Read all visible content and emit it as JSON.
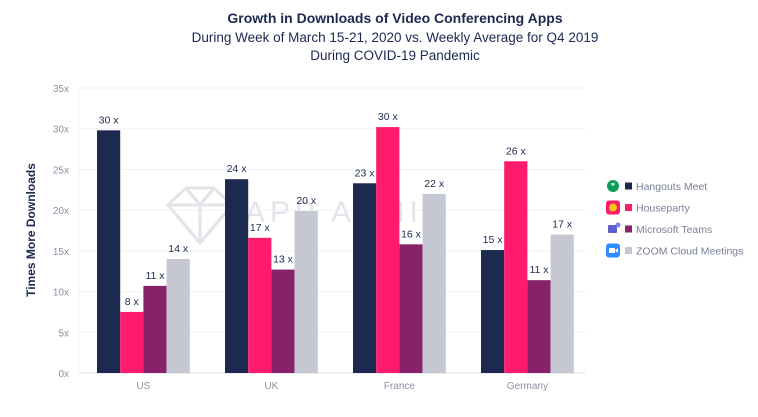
{
  "chart_data": {
    "type": "bar",
    "title": "Growth in Downloads of Video Conferencing Apps",
    "subtitle": [
      "During Week of March 15-21, 2020 vs. Weekly Average for Q4 2019",
      "During COVID-19 Pandemic"
    ],
    "xlabel": "",
    "ylabel": "Times More Downloads",
    "ylim": [
      0,
      35
    ],
    "yticks": [
      "0x",
      "5x",
      "10x",
      "15x",
      "20x",
      "25x",
      "30x",
      "35x"
    ],
    "grid": true,
    "legend_position": "right",
    "watermark": "APP ANNIE",
    "categories": [
      "US",
      "UK",
      "France",
      "Germany"
    ],
    "series": [
      {
        "name": "Hangouts Meet",
        "color": "#1c2951",
        "icon": "hangouts-icon",
        "values": [
          29.8,
          23.8,
          23.3,
          15.1
        ],
        "labels": [
          "30 x",
          "24 x",
          "23 x",
          "15 x"
        ]
      },
      {
        "name": "Houseparty",
        "color": "#fe1b6c",
        "icon": "houseparty-icon",
        "values": [
          7.5,
          16.6,
          30.2,
          26.0
        ],
        "labels": [
          "8 x",
          "17 x",
          "30 x",
          "26 x"
        ]
      },
      {
        "name": "Microsoft Teams",
        "color": "#86216a",
        "icon": "teams-icon",
        "values": [
          10.7,
          12.7,
          15.8,
          11.4
        ],
        "labels": [
          "11 x",
          "13 x",
          "16 x",
          "11 x"
        ]
      },
      {
        "name": "ZOOM Cloud Meetings",
        "color": "#c5c8d2",
        "icon": "zoom-icon",
        "values": [
          14.0,
          19.9,
          22.0,
          17.0
        ],
        "labels": [
          "14 x",
          "20 x",
          "22 x",
          "17 x"
        ]
      }
    ]
  }
}
